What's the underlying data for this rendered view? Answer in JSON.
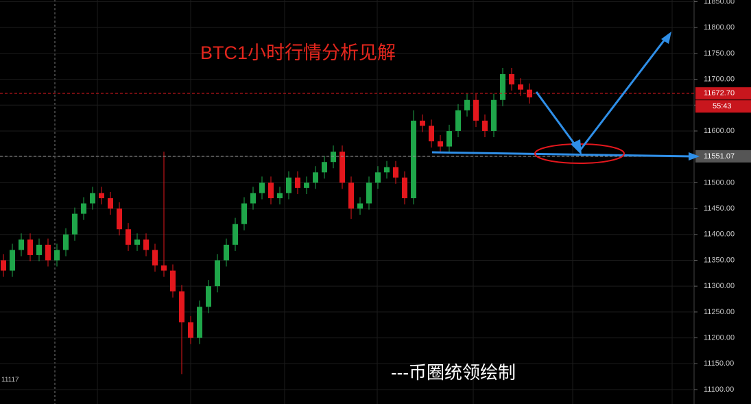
{
  "chart_data": {
    "type": "candlestick",
    "title": "BTC1小时行情分析见解",
    "footer": "---币圈统领绘制",
    "corner_label": "11117",
    "countdown": "55:43",
    "up_color": "#1fa64a",
    "down_color": "#e3171d",
    "ylim": [
      11072.1,
      11853.3
    ],
    "yticks": [
      {
        "value": 11100,
        "label": "11100.00"
      },
      {
        "value": 11150,
        "label": "11150.00"
      },
      {
        "value": 11200,
        "label": "11200.00"
      },
      {
        "value": 11250,
        "label": "11250.00"
      },
      {
        "value": 11300,
        "label": "11300.00"
      },
      {
        "value": 11350,
        "label": "11350.00"
      },
      {
        "value": 11400,
        "label": "11400.00"
      },
      {
        "value": 11450,
        "label": "11450.00"
      },
      {
        "value": 11500,
        "label": "11500.00"
      },
      {
        "value": 11550,
        "label": "11550.00"
      },
      {
        "value": 11600,
        "label": "11600.00"
      },
      {
        "value": 11650,
        "label": "11650.00"
      },
      {
        "value": 11700,
        "label": "11700.00"
      },
      {
        "value": 11750,
        "label": "11750.00"
      },
      {
        "value": 11800,
        "label": "11800.00"
      },
      {
        "value": 11850,
        "label": "11850.00"
      }
    ],
    "grid": true,
    "price_lines": [
      {
        "value": 11672.7,
        "label": "11672.70",
        "color": "#c8161d"
      },
      {
        "value": 11551.07,
        "label": "11551.07",
        "color": "#555555"
      }
    ],
    "open": [
      11350,
      11330,
      11370,
      11390,
      11360,
      11380,
      11350,
      11370,
      11400,
      11440,
      11460,
      11480,
      11470,
      11450,
      11410,
      11380,
      11390,
      11370,
      11340,
      11330,
      11290,
      11230,
      11200,
      11260,
      11300,
      11350,
      11380,
      11420,
      11460,
      11480,
      11500,
      11470,
      11480,
      11510,
      11490,
      11500,
      11520,
      11540,
      11560,
      11500,
      11450,
      11460,
      11500,
      11520,
      11530,
      11510,
      11470,
      11620,
      11610,
      11580,
      11570,
      11600,
      11640,
      11660,
      11620,
      11600,
      11660,
      11710,
      11690,
      11680
    ],
    "high": [
      11362,
      11382,
      11402,
      11402,
      11392,
      11392,
      11382,
      11412,
      11452,
      11472,
      11492,
      11492,
      11482,
      11462,
      11422,
      11402,
      11402,
      11382,
      11560,
      11342,
      11302,
      11242,
      11272,
      11312,
      11362,
      11392,
      11432,
      11472,
      11492,
      11512,
      11512,
      11492,
      11522,
      11522,
      11512,
      11532,
      11552,
      11572,
      11572,
      11512,
      11472,
      11512,
      11532,
      11542,
      11542,
      11522,
      11640,
      11632,
      11622,
      11592,
      11612,
      11652,
      11672,
      11672,
      11632,
      11672,
      11722,
      11722,
      11702,
      11692
    ],
    "low": [
      11318,
      11318,
      11358,
      11348,
      11348,
      11338,
      11338,
      11358,
      11388,
      11428,
      11448,
      11458,
      11438,
      11398,
      11368,
      11368,
      11358,
      11328,
      11318,
      11278,
      11130,
      11188,
      11188,
      11248,
      11288,
      11338,
      11368,
      11408,
      11448,
      11468,
      11458,
      11458,
      11468,
      11478,
      11478,
      11488,
      11508,
      11528,
      11488,
      11430,
      11438,
      11448,
      11488,
      11508,
      11498,
      11458,
      11458,
      11598,
      11568,
      11558,
      11558,
      11588,
      11628,
      11608,
      11588,
      11588,
      11648,
      11678,
      11668,
      11653
    ],
    "close": [
      11330,
      11370,
      11390,
      11360,
      11380,
      11350,
      11370,
      11400,
      11440,
      11460,
      11480,
      11470,
      11450,
      11410,
      11380,
      11390,
      11370,
      11340,
      11330,
      11290,
      11230,
      11200,
      11260,
      11300,
      11350,
      11380,
      11420,
      11460,
      11480,
      11500,
      11470,
      11480,
      11510,
      11490,
      11500,
      11520,
      11540,
      11560,
      11500,
      11450,
      11460,
      11500,
      11520,
      11530,
      11510,
      11470,
      11620,
      11610,
      11580,
      11570,
      11600,
      11640,
      11660,
      11620,
      11600,
      11660,
      11710,
      11690,
      11680,
      11665
    ]
  }
}
